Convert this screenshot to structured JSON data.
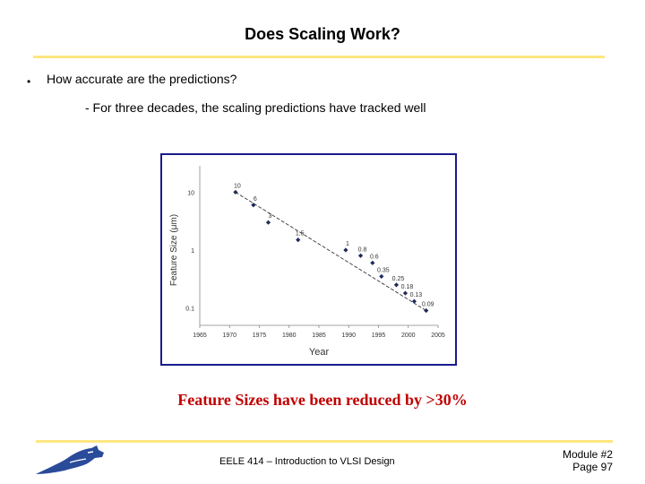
{
  "slide": {
    "title": "Does Scaling Work?",
    "bullet_marker": "•",
    "bullet": "How accurate are the predictions?",
    "sub_bullet": "- For three decades, the scaling predictions have tracked well",
    "caption": "Feature Sizes have been reduced by >30%",
    "footer_center": "EELE 414 – Introduction to VLSI Design",
    "footer_module": "Module #2",
    "footer_page": "Page 97"
  },
  "colors": {
    "rule": "#ffe680",
    "chart_border": "#1a1a8c",
    "caption": "#c00000",
    "marker": "#1f2a5c",
    "logo": "#2a4a9a"
  },
  "icons": {
    "logo": "bobcat-logo-icon"
  },
  "chart_data": {
    "type": "scatter",
    "title": "",
    "xlabel": "Year",
    "ylabel": "Feature Size (μm)",
    "yscale": "log",
    "xlim": [
      1965,
      2005
    ],
    "ylim": [
      0.05,
      20
    ],
    "xticks": [
      1965,
      1970,
      1975,
      1980,
      1985,
      1990,
      1995,
      2000,
      2005
    ],
    "yticks": [
      {
        "v": 10,
        "label": "10"
      },
      {
        "v": 1,
        "label": "1"
      },
      {
        "v": 0.1,
        "label": "0.1"
      }
    ],
    "points": [
      {
        "x": 1971,
        "y": 10,
        "label": "10"
      },
      {
        "x": 1974,
        "y": 6,
        "label": "6"
      },
      {
        "x": 1976.5,
        "y": 3,
        "label": "3"
      },
      {
        "x": 1981.5,
        "y": 1.5,
        "label": "1.5"
      },
      {
        "x": 1989.5,
        "y": 1,
        "label": "1"
      },
      {
        "x": 1992,
        "y": 0.8,
        "label": "0.8"
      },
      {
        "x": 1994,
        "y": 0.6,
        "label": "0.6"
      },
      {
        "x": 1995.5,
        "y": 0.35,
        "label": "0.35"
      },
      {
        "x": 1998,
        "y": 0.25,
        "label": "0.25"
      },
      {
        "x": 1999.5,
        "y": 0.18,
        "label": "0.18"
      },
      {
        "x": 2001,
        "y": 0.13,
        "label": "0.13"
      },
      {
        "x": 2003,
        "y": 0.09,
        "label": "0.09"
      }
    ],
    "trendline": [
      {
        "x": 1971,
        "y": 10
      },
      {
        "x": 2003,
        "y": 0.09
      }
    ],
    "grid": false,
    "legend": "none"
  }
}
